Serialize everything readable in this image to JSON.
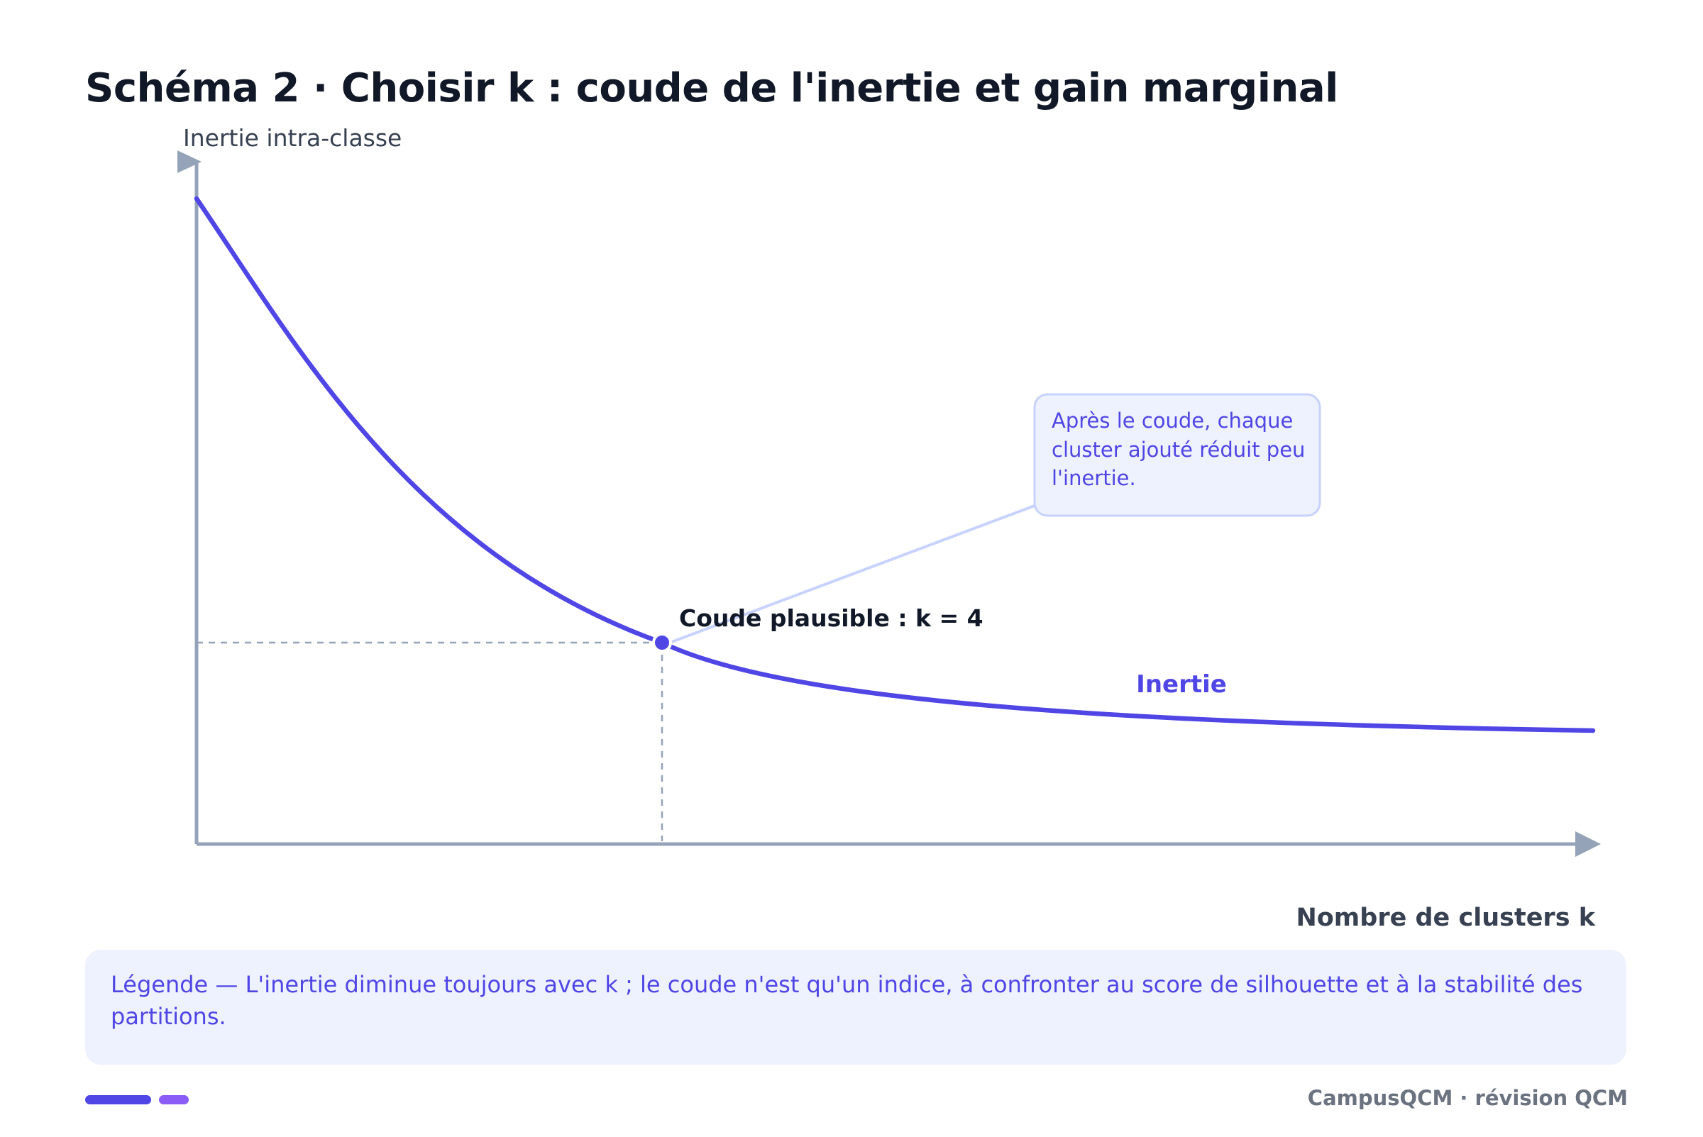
{
  "title": "Schéma 2 · Choisir k : coude de l'inertie et gain marginal",
  "chart": {
    "y_axis_label": "Inertie intra-classe",
    "x_axis_label": "Nombre de clusters k",
    "curve_label": "Inertie",
    "elbow_label": "Coude plausible : k = 4",
    "callout_lines": [
      "Après le coude, chaque",
      "cluster ajouté réduit peu",
      "l'inertie."
    ]
  },
  "chart_data": {
    "type": "line",
    "title": "Schéma 2 · Choisir k : coude de l'inertie et gain marginal",
    "xlabel": "Nombre de clusters k",
    "ylabel": "Inertie intra-classe",
    "series": [
      {
        "name": "Inertie"
      }
    ],
    "highlight": {
      "k": 4,
      "label": "Coude plausible : k = 4"
    },
    "grid": false
  },
  "legend_text": "Légende — L'inertie diminue toujours avec k ; le coude n'est qu'un indice, à confronter au score de silhouette et à la stabilité des partitions.",
  "footer": {
    "brand": "CampusQCM · révision QCM"
  },
  "colors": {
    "curve": "#4f46e5",
    "axis": "#94a3b8",
    "guide": "#94a3b8",
    "callout_border": "#c7d2fe",
    "callout_fill": "#eef2fe",
    "title": "#111827",
    "accent_bar_1": "#4f46e5",
    "accent_bar_2": "#8b5cf6"
  }
}
